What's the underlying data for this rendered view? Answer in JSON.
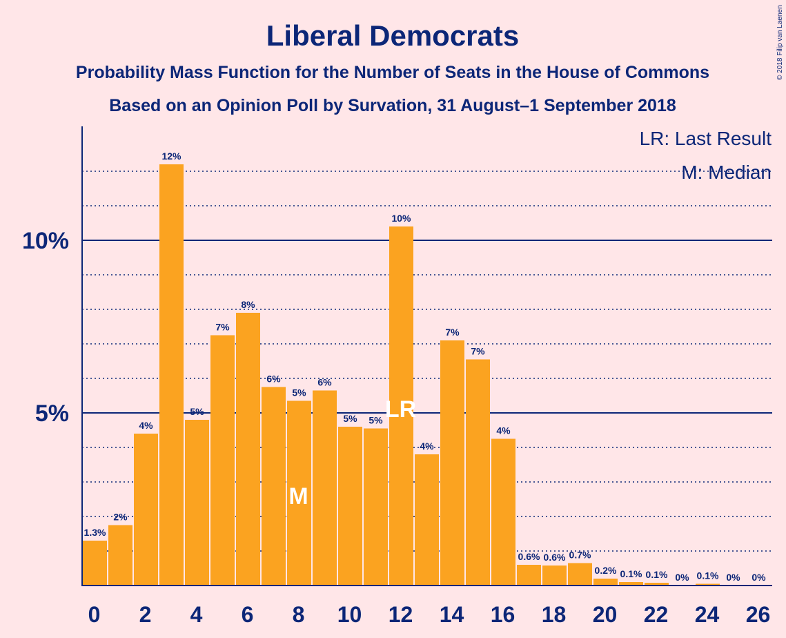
{
  "chart_data": {
    "type": "bar",
    "title": "Liberal Democrats",
    "subtitle": "Probability Mass Function for the Number of Seats in the House of Commons",
    "subtitle2": "Based on an Opinion Poll by Survation, 31 August–1 September 2018",
    "copyright": "© 2018 Filip van Laenen",
    "legend": {
      "placement": "top-right",
      "lr": "LR: Last Result",
      "m": "M: Median"
    },
    "x": [
      0,
      1,
      2,
      3,
      4,
      5,
      6,
      7,
      8,
      9,
      10,
      11,
      12,
      13,
      14,
      15,
      16,
      17,
      18,
      19,
      20,
      21,
      22,
      23,
      24,
      25,
      26
    ],
    "values": [
      1.3,
      1.75,
      4.4,
      12.2,
      4.8,
      7.25,
      7.9,
      5.75,
      5.35,
      5.65,
      4.6,
      4.55,
      10.4,
      3.8,
      7.1,
      6.55,
      4.25,
      0.6,
      0.58,
      0.65,
      0.2,
      0.1,
      0.08,
      0,
      0.05,
      0,
      0
    ],
    "data_labels": [
      "1.3%",
      "2%",
      "4%",
      "12%",
      "5%",
      "7%",
      "8%",
      "6%",
      "5%",
      "6%",
      "5%",
      "5%",
      "10%",
      "4%",
      "7%",
      "7%",
      "4%",
      "0.6%",
      "0.6%",
      "0.7%",
      "0.2%",
      "0.1%",
      "0.1%",
      "0%",
      "0.1%",
      "0%",
      "0%"
    ],
    "x_tick_labels": [
      "0",
      "2",
      "4",
      "6",
      "8",
      "10",
      "12",
      "14",
      "16",
      "18",
      "20",
      "22",
      "24",
      "26"
    ],
    "y_tick_labels": [
      "5%",
      "10%"
    ],
    "ylim": [
      0,
      13.2
    ],
    "grid": {
      "major": [
        5,
        10
      ],
      "minor": [
        1,
        2,
        3,
        4,
        6,
        7,
        8,
        9,
        11,
        12
      ]
    },
    "last_result": {
      "x": 12,
      "label": "LR"
    },
    "median": {
      "x": 8,
      "label": "M"
    },
    "colors": {
      "background": "#ffe6e8",
      "bar": "#fba320",
      "text": "#0c2677",
      "marker": "#ffffff"
    }
  }
}
